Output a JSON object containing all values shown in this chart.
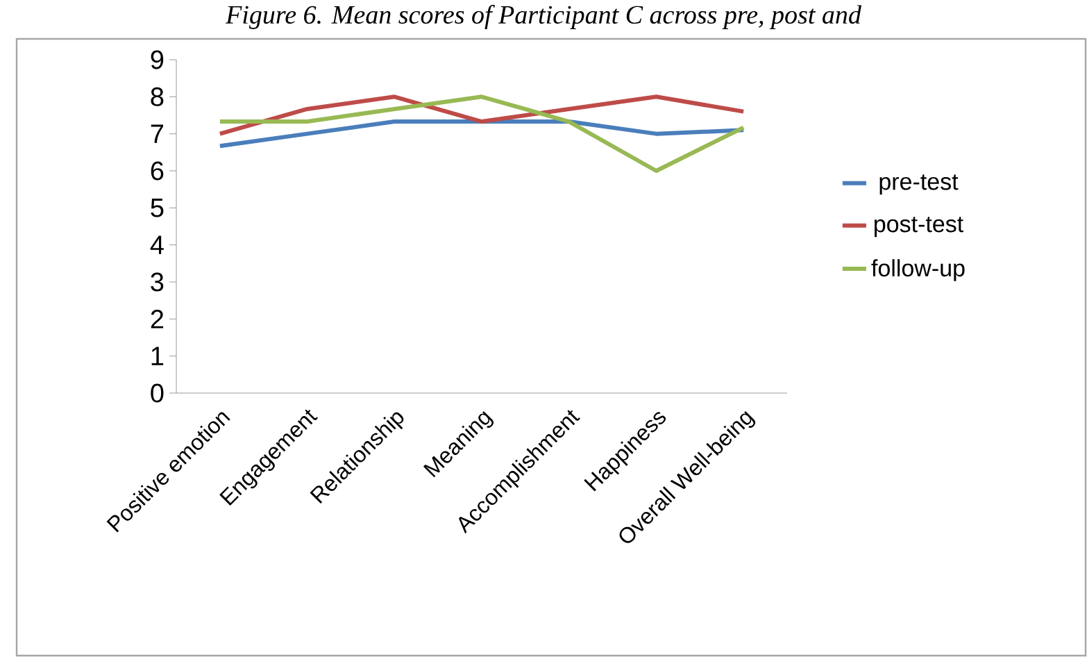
{
  "chart_data": {
    "type": "line",
    "title": "Figure 6. Mean scores of Participant C across pre, post and",
    "categories": [
      "Positive emotion",
      "Engagement",
      "Relationship",
      "Meaning",
      "Accomplishment",
      "Happiness",
      "Overall Well-being"
    ],
    "series": [
      {
        "name": "pre-test",
        "color": "#4a7ebb",
        "values": [
          6.67,
          7,
          7.33,
          7.33,
          7.33,
          7,
          7.1
        ]
      },
      {
        "name": "post-test",
        "color": "#be4b48",
        "values": [
          7,
          7.67,
          8,
          7.33,
          7.67,
          8,
          7.6
        ]
      },
      {
        "name": "follow-up",
        "color": "#98b954",
        "values": [
          7.33,
          7.33,
          7.67,
          8,
          7.33,
          6,
          7.17
        ]
      }
    ],
    "ylim": [
      0,
      9
    ],
    "yticks": [
      0,
      1,
      2,
      3,
      4,
      5,
      6,
      7,
      8,
      9
    ],
    "grid": false,
    "legend": "right",
    "marker": "none",
    "line_style": "solid"
  }
}
